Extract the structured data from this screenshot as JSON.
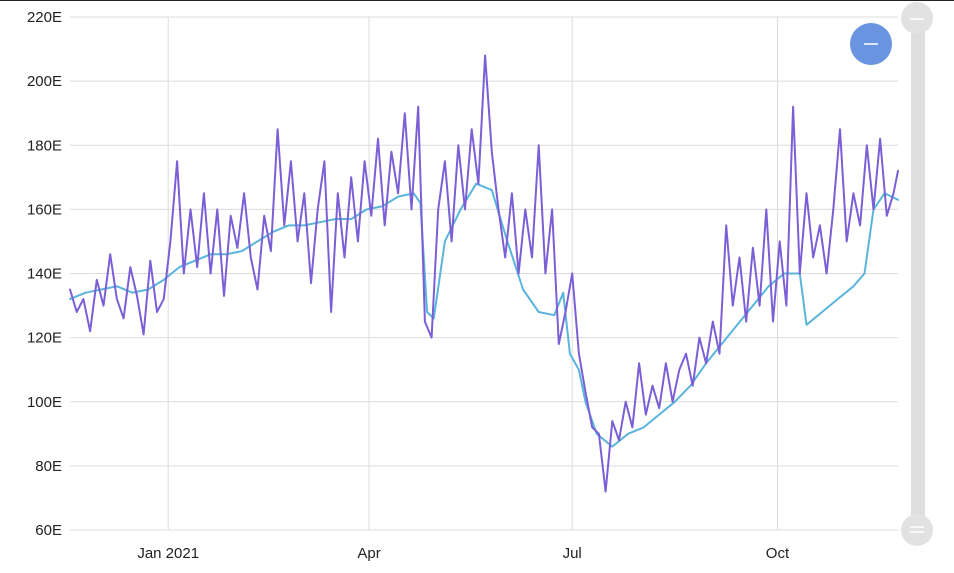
{
  "chart_data": {
    "type": "line",
    "title": "",
    "xlabel": "",
    "ylabel": "",
    "x_ticks": [
      "Jan 2021",
      "Apr",
      "Jul",
      "Oct"
    ],
    "y_ticks": [
      "60E",
      "80E",
      "100E",
      "120E",
      "140E",
      "160E",
      "180E",
      "200E",
      "220E"
    ],
    "ylim": [
      60,
      220
    ],
    "xlim": [
      "2020-11-18",
      "2021-11-24"
    ],
    "grid": true,
    "colors": {
      "daily": "#7b5fd6",
      "average": "#5ab4dc",
      "button": "#6a93e0",
      "scrollbar": "#dedede"
    },
    "series": [
      {
        "values": [
          [
            "2020-11-18",
            135
          ],
          [
            "2020-11-21",
            128
          ],
          [
            "2020-11-24",
            132
          ],
          [
            "2020-11-27",
            122
          ],
          [
            "2020-11-30",
            138
          ],
          [
            "2020-12-03",
            130
          ],
          [
            "2020-12-06",
            146
          ],
          [
            "2020-12-09",
            132
          ],
          [
            "2020-12-12",
            126
          ],
          [
            "2020-12-15",
            142
          ],
          [
            "2020-12-18",
            133
          ],
          [
            "2020-12-21",
            121
          ],
          [
            "2020-12-24",
            144
          ],
          [
            "2020-12-27",
            128
          ],
          [
            "2020-12-30",
            132
          ],
          [
            "2021-01-02",
            150
          ],
          [
            "2021-01-05",
            175
          ],
          [
            "2021-01-08",
            140
          ],
          [
            "2021-01-11",
            160
          ],
          [
            "2021-01-14",
            142
          ],
          [
            "2021-01-17",
            165
          ],
          [
            "2021-01-20",
            140
          ],
          [
            "2021-01-23",
            160
          ],
          [
            "2021-01-26",
            133
          ],
          [
            "2021-01-29",
            158
          ],
          [
            "2021-02-01",
            148
          ],
          [
            "2021-02-04",
            165
          ],
          [
            "2021-02-07",
            145
          ],
          [
            "2021-02-10",
            135
          ],
          [
            "2021-02-13",
            158
          ],
          [
            "2021-02-16",
            147
          ],
          [
            "2021-02-19",
            185
          ],
          [
            "2021-02-22",
            155
          ],
          [
            "2021-02-25",
            175
          ],
          [
            "2021-02-28",
            150
          ],
          [
            "2021-03-03",
            165
          ],
          [
            "2021-03-06",
            137
          ],
          [
            "2021-03-09",
            160
          ],
          [
            "2021-03-12",
            175
          ],
          [
            "2021-03-15",
            128
          ],
          [
            "2021-03-18",
            165
          ],
          [
            "2021-03-21",
            145
          ],
          [
            "2021-03-24",
            170
          ],
          [
            "2021-03-27",
            150
          ],
          [
            "2021-03-30",
            175
          ],
          [
            "2021-04-02",
            158
          ],
          [
            "2021-04-05",
            182
          ],
          [
            "2021-04-08",
            155
          ],
          [
            "2021-04-11",
            178
          ],
          [
            "2021-04-14",
            165
          ],
          [
            "2021-04-17",
            190
          ],
          [
            "2021-04-20",
            160
          ],
          [
            "2021-04-23",
            192
          ],
          [
            "2021-04-26",
            125
          ],
          [
            "2021-04-29",
            120
          ],
          [
            "2021-05-02",
            160
          ],
          [
            "2021-05-05",
            175
          ],
          [
            "2021-05-08",
            150
          ],
          [
            "2021-05-11",
            180
          ],
          [
            "2021-05-14",
            160
          ],
          [
            "2021-05-17",
            185
          ],
          [
            "2021-05-20",
            168
          ],
          [
            "2021-05-23",
            208
          ],
          [
            "2021-05-26",
            178
          ],
          [
            "2021-05-29",
            160
          ],
          [
            "2021-06-01",
            145
          ],
          [
            "2021-06-04",
            165
          ],
          [
            "2021-06-07",
            140
          ],
          [
            "2021-06-10",
            160
          ],
          [
            "2021-06-13",
            145
          ],
          [
            "2021-06-16",
            180
          ],
          [
            "2021-06-19",
            140
          ],
          [
            "2021-06-22",
            160
          ],
          [
            "2021-06-25",
            118
          ],
          [
            "2021-06-28",
            128
          ],
          [
            "2021-07-01",
            140
          ],
          [
            "2021-07-04",
            115
          ],
          [
            "2021-07-07",
            103
          ],
          [
            "2021-07-10",
            92
          ],
          [
            "2021-07-13",
            90
          ],
          [
            "2021-07-16",
            72
          ],
          [
            "2021-07-19",
            94
          ],
          [
            "2021-07-22",
            88
          ],
          [
            "2021-07-25",
            100
          ],
          [
            "2021-07-28",
            92
          ],
          [
            "2021-07-31",
            112
          ],
          [
            "2021-08-03",
            96
          ],
          [
            "2021-08-06",
            105
          ],
          [
            "2021-08-09",
            98
          ],
          [
            "2021-08-12",
            112
          ],
          [
            "2021-08-15",
            100
          ],
          [
            "2021-08-18",
            110
          ],
          [
            "2021-08-21",
            115
          ],
          [
            "2021-08-24",
            105
          ],
          [
            "2021-08-27",
            120
          ],
          [
            "2021-08-30",
            112
          ],
          [
            "2021-09-02",
            125
          ],
          [
            "2021-09-05",
            115
          ],
          [
            "2021-09-08",
            155
          ],
          [
            "2021-09-11",
            130
          ],
          [
            "2021-09-14",
            145
          ],
          [
            "2021-09-17",
            125
          ],
          [
            "2021-09-20",
            148
          ],
          [
            "2021-09-23",
            130
          ],
          [
            "2021-09-26",
            160
          ],
          [
            "2021-09-29",
            125
          ],
          [
            "2021-10-02",
            150
          ],
          [
            "2021-10-05",
            130
          ],
          [
            "2021-10-08",
            192
          ],
          [
            "2021-10-11",
            140
          ],
          [
            "2021-10-14",
            165
          ],
          [
            "2021-10-17",
            145
          ],
          [
            "2021-10-20",
            155
          ],
          [
            "2021-10-23",
            140
          ],
          [
            "2021-10-26",
            160
          ],
          [
            "2021-10-29",
            185
          ],
          [
            "2021-11-01",
            150
          ],
          [
            "2021-11-04",
            165
          ],
          [
            "2021-11-07",
            155
          ],
          [
            "2021-11-10",
            180
          ],
          [
            "2021-11-13",
            160
          ],
          [
            "2021-11-16",
            182
          ],
          [
            "2021-11-19",
            158
          ],
          [
            "2021-11-22",
            165
          ],
          [
            "2021-11-24",
            172
          ]
        ]
      },
      {
        "values": [
          [
            "2020-11-18",
            132
          ],
          [
            "2020-11-25",
            134
          ],
          [
            "2020-12-02",
            135
          ],
          [
            "2020-12-09",
            136
          ],
          [
            "2020-12-16",
            134
          ],
          [
            "2020-12-23",
            135
          ],
          [
            "2020-12-30",
            138
          ],
          [
            "2021-01-06",
            142
          ],
          [
            "2021-01-13",
            144
          ],
          [
            "2021-01-20",
            146
          ],
          [
            "2021-01-27",
            146
          ],
          [
            "2021-02-03",
            147
          ],
          [
            "2021-02-10",
            150
          ],
          [
            "2021-02-17",
            153
          ],
          [
            "2021-02-24",
            155
          ],
          [
            "2021-03-03",
            155
          ],
          [
            "2021-03-10",
            156
          ],
          [
            "2021-03-17",
            157
          ],
          [
            "2021-03-24",
            157
          ],
          [
            "2021-03-31",
            160
          ],
          [
            "2021-04-07",
            161
          ],
          [
            "2021-04-14",
            164
          ],
          [
            "2021-04-21",
            165
          ],
          [
            "2021-04-24",
            162
          ],
          [
            "2021-04-27",
            128
          ],
          [
            "2021-04-30",
            126
          ],
          [
            "2021-05-05",
            150
          ],
          [
            "2021-05-12",
            160
          ],
          [
            "2021-05-19",
            168
          ],
          [
            "2021-05-26",
            166
          ],
          [
            "2021-06-02",
            150
          ],
          [
            "2021-06-09",
            135
          ],
          [
            "2021-06-16",
            128
          ],
          [
            "2021-06-23",
            127
          ],
          [
            "2021-06-27",
            134
          ],
          [
            "2021-06-30",
            115
          ],
          [
            "2021-07-04",
            110
          ],
          [
            "2021-07-07",
            100
          ],
          [
            "2021-07-12",
            90
          ],
          [
            "2021-07-19",
            86
          ],
          [
            "2021-07-26",
            90
          ],
          [
            "2021-08-02",
            92
          ],
          [
            "2021-08-09",
            96
          ],
          [
            "2021-08-16",
            100
          ],
          [
            "2021-08-23",
            105
          ],
          [
            "2021-08-30",
            112
          ],
          [
            "2021-09-06",
            118
          ],
          [
            "2021-09-13",
            124
          ],
          [
            "2021-09-20",
            130
          ],
          [
            "2021-09-27",
            136
          ],
          [
            "2021-10-04",
            140
          ],
          [
            "2021-10-11",
            140
          ],
          [
            "2021-10-14",
            124
          ],
          [
            "2021-10-21",
            128
          ],
          [
            "2021-10-28",
            132
          ],
          [
            "2021-11-04",
            136
          ],
          [
            "2021-11-09",
            140
          ],
          [
            "2021-11-13",
            160
          ],
          [
            "2021-11-18",
            165
          ],
          [
            "2021-11-24",
            163
          ]
        ]
      }
    ]
  }
}
